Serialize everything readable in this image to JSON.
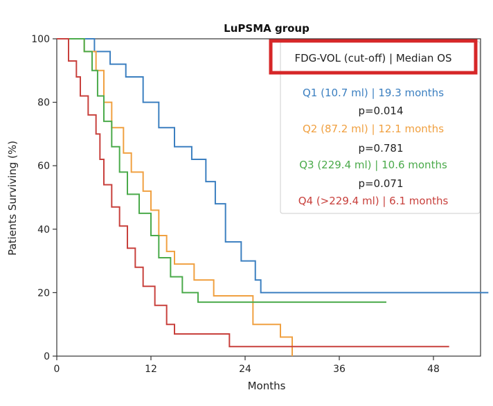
{
  "chart_data": {
    "type": "line",
    "title": "LuPSMA group",
    "xlabel": "Months",
    "ylabel": "Patients Surviving (%)",
    "xlim": [
      0,
      54
    ],
    "ylim": [
      0,
      100
    ],
    "xticks": [
      "0",
      "12",
      "24",
      "36",
      "48"
    ],
    "yticks": [
      "0",
      "20",
      "40",
      "60",
      "80",
      "100"
    ],
    "grid": false,
    "legend": {
      "placement": "top-right",
      "header": "FDG-VOL (cut-off) | Median OS",
      "header_highlight_color": "#d62728"
    },
    "series": [
      {
        "name": "Q1 (10.7 ml) | 19.3 months",
        "color": "#3b7fc0",
        "x": [
          0,
          4.8,
          6.8,
          8.8,
          11,
          13,
          15,
          17.2,
          19,
          20.2,
          21.5,
          23.5,
          25.3,
          26,
          40,
          55
        ],
        "y": [
          100,
          96,
          92,
          88,
          80,
          72,
          66,
          62,
          55,
          48,
          36,
          30,
          24,
          20,
          20,
          20
        ]
      },
      {
        "name": "Q2 (87.2 ml) | 12.1 months",
        "color": "#f0a040",
        "x": [
          0,
          3.5,
          5.0,
          6.0,
          7.0,
          8.5,
          9.5,
          11.0,
          12.0,
          13.0,
          14.0,
          15.0,
          17.5,
          20.0,
          25.0,
          28.5,
          30.0
        ],
        "y": [
          100,
          96,
          90,
          80,
          72,
          64,
          58,
          52,
          46,
          38,
          33,
          29,
          24,
          19,
          10,
          6,
          0
        ]
      },
      {
        "name": "Q3 (229.4 ml) | 10.6 months",
        "color": "#4aaa4a",
        "x": [
          0,
          3.5,
          4.5,
          5.2,
          6.0,
          7.0,
          8.0,
          9.0,
          10.5,
          12.0,
          13.0,
          14.5,
          16.0,
          18.0,
          19.0,
          40.0,
          42.0
        ],
        "y": [
          100,
          96,
          90,
          82,
          74,
          66,
          58,
          51,
          45,
          38,
          31,
          25,
          20,
          17,
          17,
          17,
          17
        ]
      },
      {
        "name": "Q4 (>229.4 ml) | 6.1 months",
        "color": "#c8403c",
        "x": [
          0,
          1.5,
          2.5,
          3.0,
          4.0,
          5.0,
          5.5,
          6.0,
          7.0,
          8.0,
          9.0,
          10.0,
          11.0,
          12.5,
          14.0,
          15.0,
          22.0,
          36.0,
          50.0
        ],
        "y": [
          100,
          93,
          88,
          82,
          76,
          70,
          62,
          54,
          47,
          41,
          34,
          28,
          22,
          16,
          10,
          7,
          3,
          3,
          3
        ]
      }
    ],
    "p_values": [
      "p=0.014",
      "p=0.781",
      "p=0.071"
    ]
  }
}
